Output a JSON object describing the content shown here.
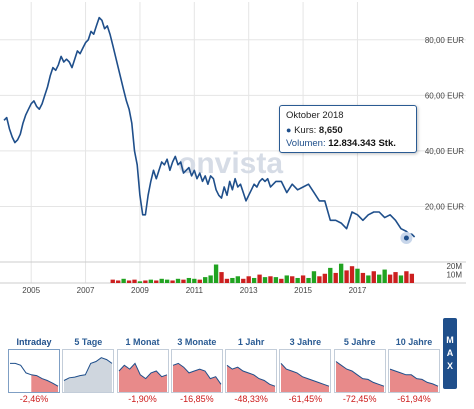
{
  "watermark": "onvista",
  "tooltip": {
    "date": "Oktober 2018",
    "bullet": "●",
    "kurs_label": "Kurs:",
    "kurs_value": "8,650",
    "volumen_label": "Volumen:",
    "volumen_value": "12.834.343 Stk."
  },
  "colors": {
    "price_line": "#1f4f8b",
    "volume_up": "#21a321",
    "volume_down": "#cc1f1f",
    "grid": "#e5e5e5",
    "thumb_fill": "#e88a8a",
    "thumb_line": "#1f4f8b",
    "thumb_fill_up": "#cfd6de"
  },
  "chart_data": {
    "type": "line",
    "x_unit": "year",
    "xlim": [
      2004.0,
      2019.3
    ],
    "ylim": [
      0,
      90
    ],
    "y_ticks": [
      20,
      40,
      60,
      80
    ],
    "y_tick_labels": [
      "20,00 EUR",
      "40,00 EUR",
      "60,00 EUR",
      "80,00 EUR"
    ],
    "x_ticks": [
      2005,
      2007,
      2009,
      2011,
      2013,
      2015,
      2017
    ],
    "x_tick_labels": [
      "2005",
      "2007",
      "2009",
      "2011",
      "2013",
      "2015",
      "2017"
    ],
    "grid": true,
    "series": [
      {
        "x": [
          2004.0,
          2004.1,
          2004.2,
          2004.3,
          2004.4,
          2004.5,
          2004.6,
          2004.7,
          2004.8,
          2004.9,
          2005.0,
          2005.1,
          2005.2,
          2005.3,
          2005.4,
          2005.5,
          2005.6,
          2005.7,
          2005.8,
          2005.9,
          2006.0,
          2006.1,
          2006.2,
          2006.3,
          2006.4,
          2006.5,
          2006.6,
          2006.7,
          2006.8,
          2006.9,
          2007.0,
          2007.1,
          2007.2,
          2007.3,
          2007.4,
          2007.5,
          2007.6,
          2007.7,
          2007.8,
          2007.9,
          2008.0,
          2008.1,
          2008.2,
          2008.3,
          2008.4,
          2008.5,
          2008.6,
          2008.7,
          2008.8,
          2008.9,
          2009.0,
          2009.1,
          2009.2,
          2009.3,
          2009.4,
          2009.5,
          2009.6,
          2009.7,
          2009.8,
          2009.9,
          2010.0,
          2010.1,
          2010.2,
          2010.3,
          2010.4,
          2010.5,
          2010.6,
          2010.7,
          2010.8,
          2010.9,
          2011.0,
          2011.1,
          2011.2,
          2011.3,
          2011.4,
          2011.5,
          2011.6,
          2011.7,
          2011.8,
          2011.9,
          2012.0,
          2012.1,
          2012.2,
          2012.3,
          2012.4,
          2012.5,
          2012.6,
          2012.7,
          2012.8,
          2012.9,
          2013.0,
          2013.1,
          2013.2,
          2013.3,
          2013.4,
          2013.5,
          2013.6,
          2013.7,
          2013.8,
          2013.9,
          2014.0,
          2014.2,
          2014.4,
          2014.6,
          2014.8,
          2015.0,
          2015.2,
          2015.4,
          2015.6,
          2015.8,
          2016.0,
          2016.2,
          2016.4,
          2016.6,
          2016.8,
          2017.0,
          2017.2,
          2017.4,
          2017.6,
          2017.8,
          2018.0,
          2018.2,
          2018.4,
          2018.6,
          2018.8,
          2018.9,
          2019.0,
          2019.1
        ],
        "y": [
          51,
          52,
          48,
          45,
          43,
          44,
          46,
          50,
          53,
          55,
          57,
          58,
          56,
          55,
          57,
          60,
          63,
          67,
          70,
          69,
          71,
          74,
          72,
          73,
          72,
          70,
          73,
          76,
          75,
          77,
          79,
          80,
          83,
          82,
          85,
          88,
          87,
          84,
          85,
          82,
          78,
          74,
          70,
          66,
          62,
          58,
          55,
          50,
          40,
          35,
          24,
          17,
          17,
          24,
          29,
          33,
          30,
          33,
          36,
          35,
          37,
          33,
          36,
          38,
          35,
          36,
          32,
          33,
          34,
          31,
          33,
          30,
          32,
          29,
          31,
          28,
          31,
          30,
          26,
          24,
          23,
          27,
          24,
          29,
          26,
          30,
          27,
          28,
          25,
          22,
          24,
          26,
          28,
          27,
          29,
          30,
          29,
          30,
          27,
          28,
          29,
          29,
          25,
          28,
          26,
          27,
          28,
          25,
          22,
          22,
          15,
          15,
          14,
          12,
          18,
          17,
          15,
          17,
          18,
          18,
          16,
          17,
          15,
          12,
          11,
          10,
          10,
          9
        ]
      }
    ],
    "volume_ylim": [
      0,
      25
    ],
    "volume_ticks": [
      10,
      20
    ],
    "volume_tick_labels": [
      "10M",
      "20M"
    ],
    "volume": {
      "x": [
        2008.0,
        2008.2,
        2008.4,
        2008.6,
        2008.8,
        2009.0,
        2009.2,
        2009.4,
        2009.6,
        2009.8,
        2010.0,
        2010.2,
        2010.4,
        2010.6,
        2010.8,
        2011.0,
        2011.2,
        2011.4,
        2011.6,
        2011.8,
        2012.0,
        2012.2,
        2012.4,
        2012.6,
        2012.8,
        2013.0,
        2013.2,
        2013.4,
        2013.6,
        2013.8,
        2014.0,
        2014.2,
        2014.4,
        2014.6,
        2014.8,
        2015.0,
        2015.2,
        2015.4,
        2015.6,
        2015.8,
        2016.0,
        2016.2,
        2016.4,
        2016.6,
        2016.8,
        2017.0,
        2017.2,
        2017.4,
        2017.6,
        2017.8,
        2018.0,
        2018.2,
        2018.4,
        2018.6,
        2018.8,
        2019.0
      ],
      "values": [
        4,
        3,
        5,
        3,
        4,
        2,
        3,
        4,
        3,
        5,
        4,
        3,
        5,
        4,
        6,
        5,
        4,
        7,
        9,
        22,
        13,
        5,
        6,
        8,
        5,
        8,
        6,
        10,
        7,
        8,
        7,
        5,
        9,
        8,
        6,
        9,
        6,
        14,
        8,
        11,
        18,
        12,
        23,
        15,
        20,
        17,
        12,
        9,
        14,
        10,
        16,
        10,
        13,
        9,
        14,
        11
      ],
      "direction": [
        "down",
        "down",
        "up",
        "down",
        "down",
        "up",
        "down",
        "up",
        "down",
        "up",
        "up",
        "down",
        "up",
        "down",
        "up",
        "up",
        "down",
        "up",
        "up",
        "up",
        "down",
        "down",
        "up",
        "up",
        "down",
        "down",
        "up",
        "down",
        "up",
        "down",
        "up",
        "down",
        "up",
        "down",
        "up",
        "down",
        "up",
        "up",
        "down",
        "down",
        "up",
        "down",
        "up",
        "down",
        "down",
        "up",
        "down",
        "up",
        "down",
        "up",
        "up",
        "down",
        "down",
        "up",
        "down",
        "down"
      ]
    },
    "current_marker": {
      "x": 2018.8,
      "y": 8.65
    }
  },
  "timeframes": [
    {
      "label": "Intraday",
      "perf": "-2,46%",
      "active": true,
      "trend": [
        0.3,
        0.3,
        0.35,
        0.55,
        0.6,
        0.62,
        0.7,
        0.75,
        0.82,
        0.9
      ],
      "fill_from": 0.45
    },
    {
      "label": "5 Tage",
      "perf": "",
      "active": false,
      "trend": [
        0.75,
        0.68,
        0.66,
        0.62,
        0.6,
        0.3,
        0.25,
        0.15,
        0.2,
        0.3
      ],
      "fill_from": -1
    },
    {
      "label": "1 Monat",
      "perf": "-1,90%",
      "active": false,
      "trend": [
        0.5,
        0.35,
        0.45,
        0.3,
        0.6,
        0.7,
        0.55,
        0.5,
        0.65,
        0.6
      ],
      "fill_from": 0
    },
    {
      "label": "3 Monate",
      "perf": "-16,85%",
      "active": false,
      "trend": [
        0.35,
        0.3,
        0.4,
        0.55,
        0.5,
        0.45,
        0.5,
        0.7,
        0.65,
        0.85
      ],
      "fill_from": 0
    },
    {
      "label": "1 Jahr",
      "perf": "-48,33%",
      "active": false,
      "trend": [
        0.35,
        0.45,
        0.4,
        0.5,
        0.55,
        0.6,
        0.7,
        0.75,
        0.85,
        0.9
      ],
      "fill_from": 0
    },
    {
      "label": "3 Jahre",
      "perf": "-61,45%",
      "active": false,
      "trend": [
        0.3,
        0.45,
        0.5,
        0.55,
        0.65,
        0.7,
        0.75,
        0.8,
        0.85,
        0.9
      ],
      "fill_from": 0
    },
    {
      "label": "5 Jahre",
      "perf": "-72,45%",
      "active": false,
      "trend": [
        0.25,
        0.35,
        0.45,
        0.5,
        0.6,
        0.7,
        0.72,
        0.8,
        0.85,
        0.9
      ],
      "fill_from": 0
    },
    {
      "label": "10 Jahre",
      "perf": "-61,94%",
      "active": false,
      "trend": [
        0.45,
        0.5,
        0.55,
        0.6,
        0.6,
        0.7,
        0.72,
        0.8,
        0.84,
        0.9
      ],
      "fill_from": 0
    }
  ],
  "max_button": {
    "letters": [
      "M",
      "A",
      "X"
    ]
  }
}
